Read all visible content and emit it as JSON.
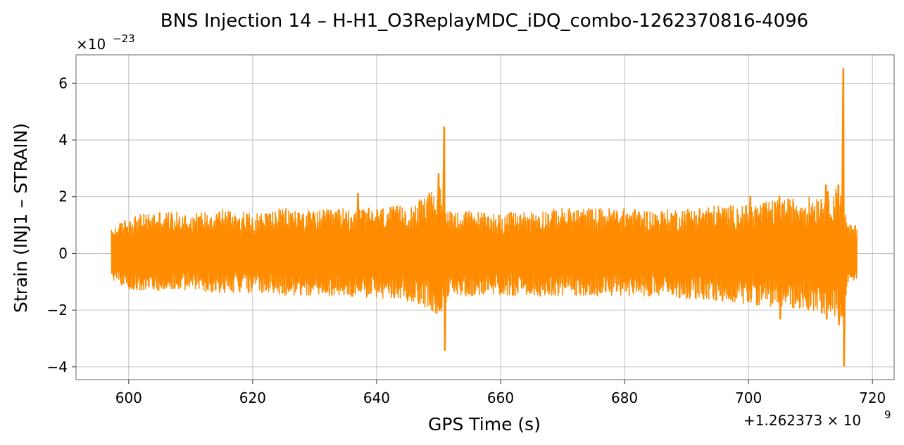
{
  "chart_data": {
    "type": "line",
    "title": "BNS Injection 14 – H-H1_O3ReplayMDC_iDQ_combo-1262370816-4096",
    "xlabel": "GPS Time (s)",
    "ylabel": "Strain (INJ1 – STRAIN)",
    "x_offset_label": "+1.262373 × 10",
    "x_offset_exponent": "9",
    "y_scale_label": "×10",
    "y_scale_exponent": "−23",
    "xlim": [
      591.5,
      723.5
    ],
    "ylim": [
      -4.45,
      7.0
    ],
    "x_ticks": [
      600,
      620,
      640,
      660,
      680,
      700,
      720
    ],
    "y_ticks": [
      -4,
      -2,
      0,
      2,
      4,
      6
    ],
    "y_tick_labels": [
      "−4",
      "−2",
      "0",
      "2",
      "4",
      "6"
    ],
    "grid": true,
    "series": [
      {
        "color": "#ff8c00",
        "x_start": 597.2,
        "x_end": 717.5,
        "envelope": [
          {
            "x": 597.2,
            "lo": -0.9,
            "hi": 0.85
          },
          {
            "x": 600,
            "lo": -1.3,
            "hi": 1.3
          },
          {
            "x": 605,
            "lo": -1.3,
            "hi": 1.5
          },
          {
            "x": 610,
            "lo": -1.3,
            "hi": 1.4
          },
          {
            "x": 615,
            "lo": -1.4,
            "hi": 1.6
          },
          {
            "x": 620,
            "lo": -1.4,
            "hi": 1.4
          },
          {
            "x": 625,
            "lo": -1.5,
            "hi": 1.6
          },
          {
            "x": 630,
            "lo": -1.5,
            "hi": 1.5
          },
          {
            "x": 635,
            "lo": -1.5,
            "hi": 1.6
          },
          {
            "x": 640,
            "lo": -1.6,
            "hi": 1.6
          },
          {
            "x": 645,
            "lo": -1.7,
            "hi": 1.7
          },
          {
            "x": 648,
            "lo": -1.9,
            "hi": 2.0
          },
          {
            "x": 650,
            "lo": -2.2,
            "hi": 2.4
          },
          {
            "x": 652,
            "lo": -1.5,
            "hi": 1.5
          },
          {
            "x": 655,
            "lo": -1.5,
            "hi": 1.5
          },
          {
            "x": 660,
            "lo": -1.5,
            "hi": 1.4
          },
          {
            "x": 665,
            "lo": -1.5,
            "hi": 1.5
          },
          {
            "x": 670,
            "lo": -1.5,
            "hi": 1.6
          },
          {
            "x": 675,
            "lo": -1.5,
            "hi": 1.6
          },
          {
            "x": 680,
            "lo": -1.5,
            "hi": 1.6
          },
          {
            "x": 685,
            "lo": -1.5,
            "hi": 1.5
          },
          {
            "x": 690,
            "lo": -1.6,
            "hi": 1.6
          },
          {
            "x": 695,
            "lo": -1.7,
            "hi": 1.7
          },
          {
            "x": 700,
            "lo": -1.8,
            "hi": 1.7
          },
          {
            "x": 705,
            "lo": -1.9,
            "hi": 1.9
          },
          {
            "x": 710,
            "lo": -2.0,
            "hi": 2.0
          },
          {
            "x": 713,
            "lo": -2.2,
            "hi": 2.2
          },
          {
            "x": 715,
            "lo": -2.5,
            "hi": 2.4
          },
          {
            "x": 716,
            "lo": -1.1,
            "hi": 1.0
          },
          {
            "x": 717.5,
            "lo": -1.0,
            "hi": 1.0
          }
        ],
        "spikes": [
          {
            "x": 637.0,
            "lo": -1.3,
            "hi": 2.1
          },
          {
            "x": 648.5,
            "lo": -1.8,
            "hi": 2.1
          },
          {
            "x": 650.0,
            "lo": -2.0,
            "hi": 2.8
          },
          {
            "x": 650.9,
            "lo": -3.4,
            "hi": 4.45
          },
          {
            "x": 700.3,
            "lo": -1.6,
            "hi": 2.0
          },
          {
            "x": 705.0,
            "lo": -2.3,
            "hi": 2.0
          },
          {
            "x": 712.5,
            "lo": -2.3,
            "hi": 2.4
          },
          {
            "x": 714.5,
            "lo": -2.5,
            "hi": 2.4
          },
          {
            "x": 715.3,
            "lo": -3.95,
            "hi": 6.5
          }
        ]
      }
    ]
  }
}
